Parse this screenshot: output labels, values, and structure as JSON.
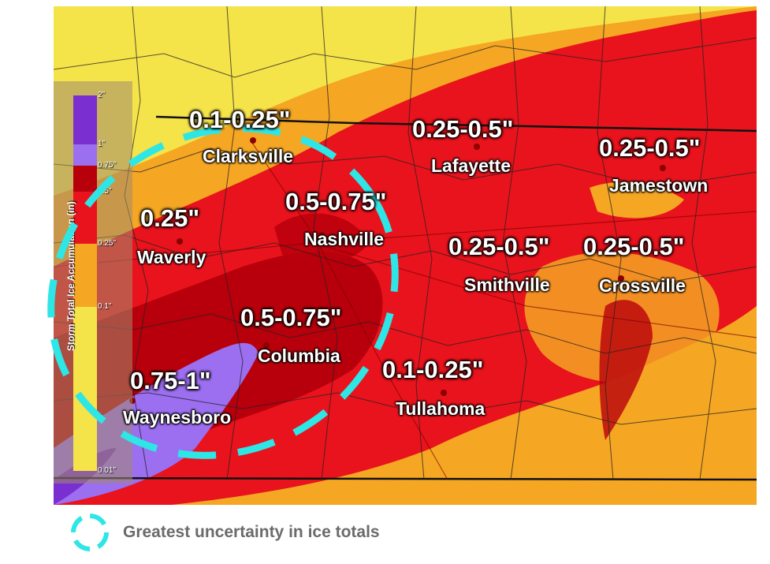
{
  "legend": {
    "title": "Storm Total Ice Accumulation (in)",
    "ticks": [
      "2\"",
      "1\"",
      "0.75\"",
      "0.5\"",
      "0.25\"",
      "0.1\"",
      "0.01\""
    ],
    "colors": [
      "#7a2fd0",
      "#9c6ef0",
      "#b8000c",
      "#e8131c",
      "#f5a623",
      "#f5e34a"
    ]
  },
  "regions": [
    {
      "city": "Clarksville",
      "amount": "0.1-0.25\""
    },
    {
      "city": "Lafayette",
      "amount": "0.25-0.5\""
    },
    {
      "city": "Jamestown",
      "amount": "0.25-0.5\""
    },
    {
      "city": "Nashville",
      "amount": "0.5-0.75\""
    },
    {
      "city": "Waverly",
      "amount": "0.25\""
    },
    {
      "city": "Smithville",
      "amount": "0.25-0.5\""
    },
    {
      "city": "Crossville",
      "amount": "0.25-0.5\""
    },
    {
      "city": "Columbia",
      "amount": "0.5-0.75\""
    },
    {
      "city": "Tullahoma",
      "amount": "0.1-0.25\""
    },
    {
      "city": "Waynesboro",
      "amount": "0.75-1\""
    }
  ],
  "key": {
    "label": "Greatest uncertainty in ice totals",
    "color": "#2ee6e6"
  },
  "colors": {
    "yellow": "#f5e34a",
    "orange": "#f5a623",
    "red": "#e8131c",
    "darkred": "#b8000c",
    "purple": "#9c6ef0"
  }
}
